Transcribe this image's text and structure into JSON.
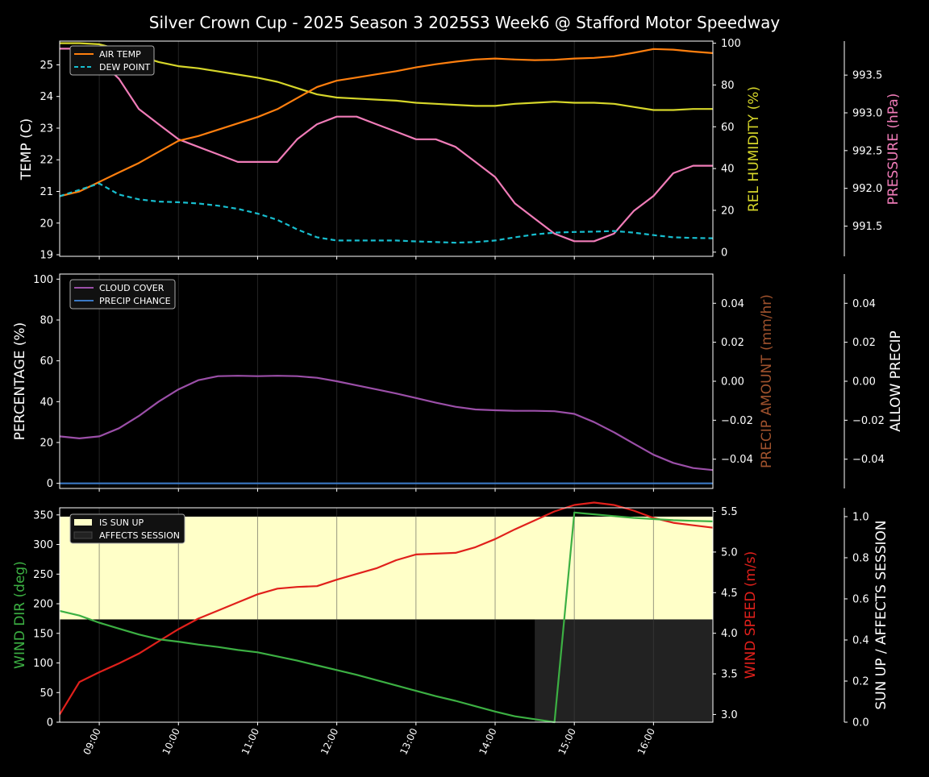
{
  "title": "Silver Crown Cup - 2025 Season 3 2025S3 Week6 @ Stafford Motor Speedway",
  "x_ticks": [
    "09:00",
    "10:00",
    "11:00",
    "12:00",
    "13:00",
    "14:00",
    "15:00",
    "16:00"
  ],
  "colors": {
    "air_temp": "#ff7f0e",
    "dew_point": "#17becf",
    "humidity": "#d6d62a",
    "pressure": "#f07cb8",
    "cloud": "#9b4fa8",
    "precip_chance": "#3a78c4",
    "precip_amount_label": "#a0522d",
    "wind_dir": "#3cb043",
    "wind_speed": "#e0201b",
    "sun_up": "#ffffc8",
    "affects_session": "#222222"
  },
  "chart_data": [
    {
      "type": "line",
      "ylabel": "TEMP (C)",
      "ylabel2": "REL HUMIDITY (%)",
      "ylabel3": "PRESSURE (hPa)",
      "ylim": [
        18.95,
        25.75
      ],
      "ylim2": [
        -2,
        101
      ],
      "ylim3": [
        991.1,
        993.95
      ],
      "y_ticks": [
        "19",
        "20",
        "21",
        "22",
        "23",
        "24",
        "25"
      ],
      "y2_ticks": [
        "0",
        "20",
        "40",
        "60",
        "80",
        "100"
      ],
      "y3_ticks": [
        "991.5",
        "992.0",
        "992.5",
        "993.0",
        "993.5"
      ],
      "legend": [
        "AIR TEMP",
        "DEW POINT"
      ],
      "legend_position": "top-left",
      "x": [
        8.5,
        8.75,
        9,
        9.25,
        9.5,
        9.75,
        10,
        10.25,
        10.5,
        10.75,
        11,
        11.25,
        11.5,
        11.75,
        12,
        12.25,
        12.5,
        12.75,
        13,
        13.25,
        13.5,
        13.75,
        14,
        14.25,
        14.5,
        14.75,
        15,
        15.25,
        15.5,
        15.75,
        16,
        16.25,
        16.5,
        16.75
      ],
      "series": [
        {
          "name": "AIR TEMP",
          "axis": "temp",
          "values": [
            20.85,
            21.0,
            21.3,
            21.6,
            21.9,
            22.25,
            22.6,
            22.75,
            22.95,
            23.15,
            23.35,
            23.6,
            23.95,
            24.3,
            24.5,
            24.6,
            24.7,
            24.8,
            24.92,
            25.02,
            25.1,
            25.17,
            25.2,
            25.17,
            25.15,
            25.16,
            25.2,
            25.22,
            25.27,
            25.38,
            25.5,
            25.48,
            25.42,
            25.37
          ]
        },
        {
          "name": "DEW POINT",
          "axis": "temp",
          "values": [
            20.85,
            21.05,
            21.25,
            20.9,
            20.75,
            20.68,
            20.66,
            20.62,
            20.55,
            20.45,
            20.3,
            20.1,
            19.8,
            19.55,
            19.45,
            19.45,
            19.45,
            19.45,
            19.42,
            19.4,
            19.38,
            19.4,
            19.45,
            19.55,
            19.64,
            19.7,
            19.72,
            19.73,
            19.75,
            19.7,
            19.62,
            19.55,
            19.53,
            19.52
          ]
        },
        {
          "values": [
            100,
            100,
            99.5,
            97,
            94,
            91,
            89,
            88,
            86.5,
            85,
            83.5,
            81.5,
            78.5,
            75.5,
            74,
            73.5,
            73,
            72.5,
            71.5,
            71,
            70.5,
            70,
            70,
            71,
            71.5,
            72,
            71.5,
            71.5,
            71,
            69.5,
            68,
            68,
            68.5,
            68.5
          ],
          "axis": "humidity"
        },
        {
          "values": [
            993.85,
            993.85,
            993.7,
            993.45,
            993.05,
            992.85,
            992.65,
            992.55,
            992.45,
            992.35,
            992.35,
            992.35,
            992.65,
            992.85,
            992.95,
            992.95,
            992.85,
            992.75,
            992.65,
            992.65,
            992.55,
            992.35,
            992.15,
            991.8,
            991.6,
            991.4,
            991.3,
            991.3,
            991.4,
            991.7,
            991.9,
            992.2,
            992.3,
            992.3
          ],
          "axis": "pressure"
        }
      ]
    },
    {
      "type": "line",
      "ylabel": "PERCENTAGE (%)",
      "ylabel2": "PRECIP AMOUNT (mm/hr)",
      "ylabel3": "ALLOW PRECIP",
      "ylim": [
        -2.5,
        102.5
      ],
      "ylim2": [
        -0.055,
        0.055
      ],
      "ylim3": [
        -0.055,
        0.055
      ],
      "y_ticks": [
        "0",
        "20",
        "40",
        "60",
        "80",
        "100"
      ],
      "y2_ticks": [
        "−0.04",
        "−0.02",
        "0.00",
        "0.02",
        "0.04"
      ],
      "y3_ticks": [
        "−0.04",
        "−0.02",
        "0.00",
        "0.02",
        "0.04"
      ],
      "legend": [
        "CLOUD COVER",
        "PRECIP CHANCE"
      ],
      "legend_position": "top-left",
      "x": [
        8.5,
        8.75,
        9,
        9.25,
        9.5,
        9.75,
        10,
        10.25,
        10.5,
        10.75,
        11,
        11.25,
        11.5,
        11.75,
        12,
        12.25,
        12.5,
        12.75,
        13,
        13.25,
        13.5,
        13.75,
        14,
        14.25,
        14.5,
        14.75,
        15,
        15.25,
        15.5,
        15.75,
        16,
        16.25,
        16.5,
        16.75
      ],
      "series": [
        {
          "name": "CLOUD COVER",
          "values": [
            23,
            22,
            23,
            27,
            33,
            40,
            46,
            50.5,
            52.5,
            52.7,
            52.5,
            52.7,
            52.5,
            51.7,
            50,
            48,
            46,
            44,
            41.8,
            39.5,
            37.5,
            36.2,
            35.8,
            35.5,
            35.5,
            35.3,
            34,
            30,
            25,
            19.5,
            14,
            10,
            7.5,
            6.5
          ]
        },
        {
          "name": "PRECIP CHANCE",
          "values": [
            0,
            0,
            0,
            0,
            0,
            0,
            0,
            0,
            0,
            0,
            0,
            0,
            0,
            0,
            0,
            0,
            0,
            0,
            0,
            0,
            0,
            0,
            0,
            0,
            0,
            0,
            0,
            0,
            0,
            0,
            0,
            0,
            0,
            0
          ]
        }
      ]
    },
    {
      "type": "line",
      "ylabel": "WIND DIR (deg)",
      "ylabel2": "WIND SPEED (m/s)",
      "ylabel3": "SUN UP / AFFECTS SESSION",
      "ylim": [
        0,
        362
      ],
      "ylim2": [
        2.905,
        5.545
      ],
      "ylim3": [
        0,
        1.043
      ],
      "y_ticks": [
        "0",
        "50",
        "100",
        "150",
        "200",
        "250",
        "300",
        "350"
      ],
      "y2_ticks": [
        "3.0",
        "3.5",
        "4.0",
        "4.5",
        "5.0",
        "5.5"
      ],
      "y3_ticks": [
        "0.0",
        "0.2",
        "0.4",
        "0.6",
        "0.8",
        "1.0"
      ],
      "legend": [
        "IS SUN UP",
        "AFFECTS SESSION"
      ],
      "legend_position": "top-left",
      "sun_up_value": 1.0,
      "affects_session_value": 0.5,
      "affects_session_from": 14.5,
      "x": [
        8.5,
        8.75,
        9,
        9.25,
        9.5,
        9.75,
        10,
        10.25,
        10.5,
        10.75,
        11,
        11.25,
        11.5,
        11.75,
        12,
        12.25,
        12.5,
        12.75,
        13,
        13.25,
        13.5,
        13.75,
        14,
        14.25,
        14.5,
        14.75,
        15,
        15.25,
        15.5,
        15.75,
        16,
        16.25,
        16.5,
        16.75
      ],
      "series": [
        {
          "values": [
            188,
            180,
            168,
            158,
            148,
            140,
            136,
            131,
            127,
            122,
            118,
            111,
            104,
            96,
            88,
            80,
            71,
            62,
            53,
            44,
            36,
            27,
            18,
            10,
            5,
            0,
            354,
            351,
            348,
            345,
            343,
            341,
            340,
            339
          ],
          "axis": "dir"
        },
        {
          "values": [
            3.0,
            3.4,
            3.52,
            3.63,
            3.75,
            3.9,
            4.05,
            4.18,
            4.28,
            4.38,
            4.48,
            4.55,
            4.57,
            4.58,
            4.66,
            4.73,
            4.8,
            4.9,
            4.97,
            4.98,
            4.99,
            5.06,
            5.16,
            5.28,
            5.39,
            5.5,
            5.58,
            5.61,
            5.58,
            5.51,
            5.42,
            5.36,
            5.33,
            5.3
          ],
          "axis": "speed"
        }
      ]
    }
  ]
}
